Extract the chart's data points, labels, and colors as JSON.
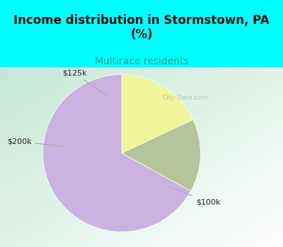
{
  "title": "Income distribution in Stormstown, PA\n(%)",
  "subtitle": "Multirace residents",
  "title_color": "#111111",
  "subtitle_color": "#2a9d8f",
  "bg_color_top": "#00ffff",
  "labels": [
    "$125k",
    "$200k",
    "$100k"
  ],
  "sizes": [
    18,
    15,
    67
  ],
  "colors": [
    "#eef59a",
    "#b5c49a",
    "#c9b3e0"
  ],
  "watermark": "City-Data.com",
  "figsize": [
    4.0,
    3.5
  ],
  "dpi": 100,
  "startangle": 90,
  "chart_bg_colors": [
    "#c5e8d5",
    "#e8f5e9",
    "#dff5f5",
    "#ffffff"
  ],
  "title_fontsize": 12,
  "subtitle_fontsize": 10
}
